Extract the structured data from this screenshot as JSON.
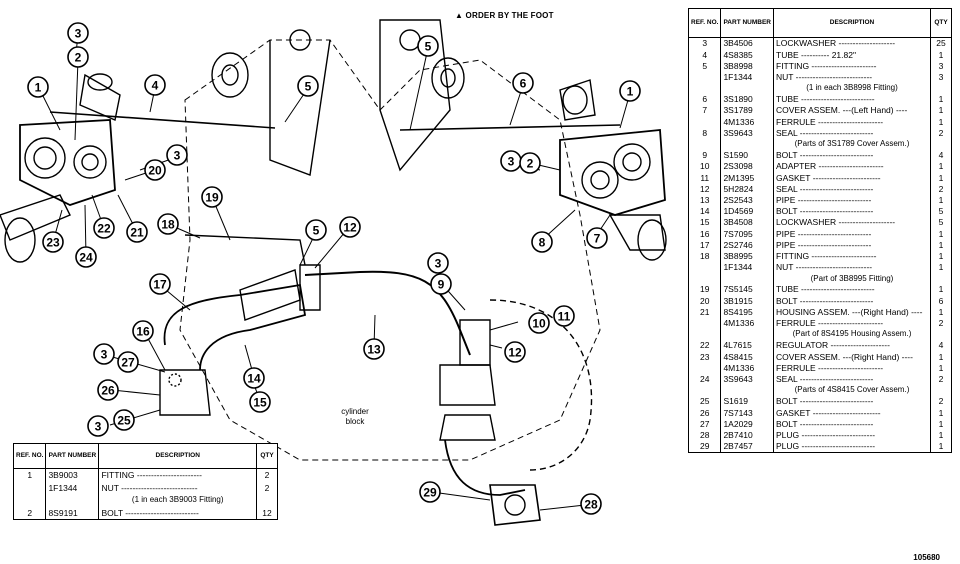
{
  "header_note": "▲ ORDER BY THE FOOT",
  "drawing_id": "105680",
  "diagram_label": "cylinder\nblock",
  "callouts": [
    "1",
    "2",
    "3",
    "4",
    "5",
    "6",
    "7",
    "8",
    "9",
    "10",
    "11",
    "12",
    "13",
    "14",
    "15",
    "16",
    "17",
    "18",
    "19",
    "20",
    "21",
    "22",
    "23",
    "24",
    "25",
    "26",
    "27",
    "28",
    "29"
  ],
  "table_headers": {
    "ref": "REF. NO.",
    "part": "PART NUMBER",
    "desc": "DESCRIPTION",
    "qty": "QTY"
  },
  "right_table": [
    {
      "ref": "3",
      "pn": "3B4506",
      "desc": "LOCKWASHER",
      "qty": "25"
    },
    {
      "ref": "4",
      "pn": "4S8385",
      "desc": "TUBE",
      "extra": "21.82\"",
      "qty": "1",
      "marker": "▲"
    },
    {
      "ref": "5",
      "pn": "3B8998",
      "desc": "FITTING",
      "qty": "3"
    },
    {
      "ref": "",
      "pn": "1F1344",
      "desc": "NUT",
      "qty": "3"
    },
    {
      "ref": "",
      "pn": "",
      "desc": "(1 in each 3B8998 Fitting)",
      "qty": "",
      "note": true
    },
    {
      "ref": "6",
      "pn": "3S1890",
      "desc": "TUBE",
      "qty": "1"
    },
    {
      "ref": "7",
      "pn": "3S1789",
      "desc": "COVER ASSEM. ---(Left Hand)",
      "qty": "1"
    },
    {
      "ref": "",
      "pn": "4M1336",
      "desc": "FERRULE",
      "qty": "1"
    },
    {
      "ref": "8",
      "pn": "3S9643",
      "desc": "SEAL",
      "qty": "2"
    },
    {
      "ref": "",
      "pn": "",
      "desc": "(Parts of 3S1789 Cover Assem.)",
      "qty": "",
      "note": true
    },
    {
      "ref": "9",
      "pn": "S1590",
      "desc": "BOLT",
      "qty": "4"
    },
    {
      "ref": "10",
      "pn": "2S3098",
      "desc": "ADAPTER",
      "qty": "1"
    },
    {
      "ref": "11",
      "pn": "2M1395",
      "desc": "GASKET",
      "qty": "1"
    },
    {
      "ref": "12",
      "pn": "5H2824",
      "desc": "SEAL",
      "qty": "2"
    },
    {
      "ref": "13",
      "pn": "2S2543",
      "desc": "PIPE",
      "qty": "1"
    },
    {
      "ref": "14",
      "pn": "1D4569",
      "desc": "BOLT",
      "qty": "5"
    },
    {
      "ref": "15",
      "pn": "3B4508",
      "desc": "LOCKWASHER",
      "qty": "5"
    },
    {
      "ref": "16",
      "pn": "7S7095",
      "desc": "PIPE",
      "qty": "1"
    },
    {
      "ref": "17",
      "pn": "2S2746",
      "desc": "PIPE",
      "qty": "1"
    },
    {
      "ref": "18",
      "pn": "3B8995",
      "desc": "FITTING",
      "qty": "1"
    },
    {
      "ref": "",
      "pn": "1F1344",
      "desc": "NUT",
      "qty": "1"
    },
    {
      "ref": "",
      "pn": "",
      "desc": "(Part of 3B8995 Fitting)",
      "qty": "",
      "note": true
    },
    {
      "ref": "19",
      "pn": "7S5145",
      "desc": "TUBE",
      "qty": "1"
    },
    {
      "ref": "20",
      "pn": "3B1915",
      "desc": "BOLT",
      "qty": "6"
    },
    {
      "ref": "21",
      "pn": "8S4195",
      "desc": "HOUSING ASSEM. ---(Right Hand)",
      "qty": "1"
    },
    {
      "ref": "",
      "pn": "4M1336",
      "desc": "FERRULE",
      "qty": "2"
    },
    {
      "ref": "",
      "pn": "",
      "desc": "(Part of 8S4195 Housing Assem.)",
      "qty": "",
      "note": true
    },
    {
      "ref": "22",
      "pn": "4L7615",
      "desc": "REGULATOR",
      "qty": "4"
    },
    {
      "ref": "23",
      "pn": "4S8415",
      "desc": "COVER ASSEM. ---(Right Hand)",
      "qty": "1"
    },
    {
      "ref": "",
      "pn": "4M1336",
      "desc": "FERRULE",
      "qty": "1"
    },
    {
      "ref": "24",
      "pn": "3S9643",
      "desc": "SEAL",
      "qty": "2"
    },
    {
      "ref": "",
      "pn": "",
      "desc": "(Parts of 4S8415 Cover Assem.)",
      "qty": "",
      "note": true
    },
    {
      "ref": "25",
      "pn": "S1619",
      "desc": "BOLT",
      "qty": "2"
    },
    {
      "ref": "26",
      "pn": "7S7143",
      "desc": "GASKET",
      "qty": "1"
    },
    {
      "ref": "27",
      "pn": "1A2029",
      "desc": "BOLT",
      "qty": "1"
    },
    {
      "ref": "28",
      "pn": "2B7410",
      "desc": "PLUG",
      "qty": "1"
    },
    {
      "ref": "29",
      "pn": "2B7457",
      "desc": "PLUG",
      "qty": "1"
    }
  ],
  "left_table": [
    {
      "ref": "1",
      "pn": "3B9003",
      "desc": "FITTING",
      "qty": "2"
    },
    {
      "ref": "",
      "pn": "1F1344",
      "desc": "NUT",
      "qty": "2"
    },
    {
      "ref": "",
      "pn": "",
      "desc": "(1 in each 3B9003 Fitting)",
      "qty": "",
      "note": true
    },
    {
      "ref": "2",
      "pn": "8S9191",
      "desc": "BOLT",
      "qty": "12"
    }
  ]
}
